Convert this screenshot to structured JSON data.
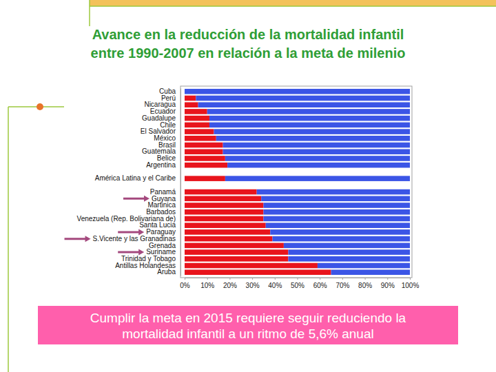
{
  "chart_data": {
    "type": "bar",
    "orientation": "horizontal",
    "stacked": true,
    "grid": false,
    "title": [
      "Avance en la reducción de la mortalidad infantil",
      "entre 1990-2007 en relación a la meta de milenio"
    ],
    "annotations": [
      "Cumplir la meta en 2015 requiere seguir reduciendo la",
      "mortalidad infantil a un ritmo de 5,6% anual"
    ],
    "categories": [
      "Cuba",
      "Perú",
      "Nicaragua",
      "Ecuador",
      "Guadalupe",
      "Chile",
      "El Salvador",
      "México",
      "Brasil",
      "Guatemala",
      "Belice",
      "Argentina",
      null,
      "América Latina y el Caribe",
      null,
      "Panamá",
      "Guyana",
      "Martinica",
      "Barbados",
      "Venezuela (Rep. Bolivariana de)",
      "Santa Lucia",
      "Paraguay",
      "S.Vicente y las Granadinas",
      "Grenada",
      "Suriname",
      "Trinidad y Tobago",
      "Antillas Holandesas",
      "Aruba"
    ],
    "series": [
      {
        "color": "#e8141c",
        "values": [
          0,
          5,
          6,
          10,
          11,
          11,
          13,
          14,
          17,
          17,
          18,
          19,
          null,
          18,
          null,
          32,
          34,
          35,
          35,
          35,
          36,
          38,
          39,
          44,
          46,
          46,
          59,
          65
        ]
      },
      {
        "color": "#3b55e6",
        "values": [
          100,
          95,
          94,
          90,
          89,
          89,
          87,
          86,
          83,
          83,
          82,
          81,
          null,
          82,
          null,
          68,
          66,
          65,
          65,
          65,
          64,
          62,
          61,
          56,
          54,
          54,
          41,
          35
        ]
      }
    ],
    "xlim": [
      0,
      100
    ],
    "xticks": [
      {
        "value": 0,
        "label": "0%"
      },
      {
        "value": 10,
        "label": "10%"
      },
      {
        "value": 20,
        "label": "20%"
      },
      {
        "value": 30,
        "label": "30%"
      },
      {
        "value": 40,
        "label": "40%"
      },
      {
        "value": 50,
        "label": "50%"
      },
      {
        "value": 60,
        "label": "60%"
      },
      {
        "value": 70,
        "label": "70%"
      },
      {
        "value": 80,
        "label": "80%"
      },
      {
        "value": 90,
        "label": "90%"
      },
      {
        "value": 100,
        "label": "100%"
      }
    ]
  }
}
